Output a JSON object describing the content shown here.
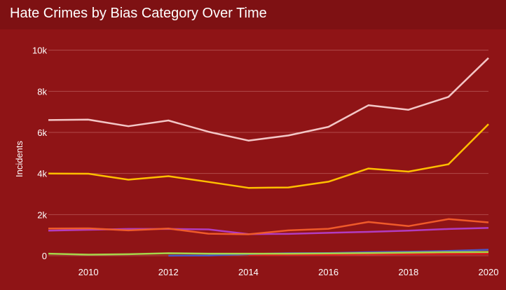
{
  "window": {
    "title": "Hate Crimes by Bias Category Over Time"
  },
  "chart_data": {
    "type": "line",
    "title": "Hate Crimes by Bias Category Over Time",
    "xlabel": "",
    "ylabel": "Incidents",
    "xlim": [
      2009,
      2020
    ],
    "ylim": [
      0,
      10500
    ],
    "x_ticks": [
      2010,
      2012,
      2014,
      2016,
      2018,
      2020
    ],
    "y_ticks": [
      0,
      2000,
      4000,
      6000,
      8000,
      10000
    ],
    "y_tick_labels": [
      "0",
      "2k",
      "4k",
      "6k",
      "8k",
      "10k"
    ],
    "grid": true,
    "legend": "none",
    "series": [
      {
        "color": "#f3c6c6",
        "x": [
          2009,
          2010,
          2011,
          2012,
          2013,
          2014,
          2015,
          2016,
          2017,
          2018,
          2019,
          2020
        ],
        "values": [
          6600,
          6620,
          6300,
          6580,
          6030,
          5600,
          5850,
          6270,
          7320,
          7100,
          7730,
          9620
        ]
      },
      {
        "color": "#ffbf00",
        "x": [
          2009,
          2010,
          2011,
          2012,
          2013,
          2014,
          2015,
          2016,
          2017,
          2018,
          2019,
          2020
        ],
        "values": [
          4000,
          3990,
          3700,
          3870,
          3590,
          3300,
          3320,
          3600,
          4240,
          4090,
          4450,
          6400
        ]
      },
      {
        "color": "#ef5a2a",
        "x": [
          2009,
          2010,
          2011,
          2012,
          2013,
          2014,
          2015,
          2016,
          2017,
          2018,
          2019,
          2020
        ],
        "values": [
          1320,
          1330,
          1230,
          1320,
          1070,
          1040,
          1230,
          1310,
          1640,
          1440,
          1780,
          1620
        ]
      },
      {
        "color": "#b23cc0",
        "x": [
          2009,
          2010,
          2011,
          2012,
          2013,
          2014,
          2015,
          2016,
          2017,
          2018,
          2019,
          2020
        ],
        "values": [
          1220,
          1260,
          1300,
          1300,
          1280,
          1050,
          1060,
          1110,
          1160,
          1220,
          1300,
          1350
        ]
      },
      {
        "color": "#a6d64a",
        "x": [
          2009,
          2010,
          2011,
          2012,
          2013,
          2014,
          2015,
          2016,
          2017,
          2018,
          2019,
          2020
        ],
        "values": [
          100,
          50,
          70,
          120,
          100,
          100,
          100,
          110,
          130,
          150,
          170,
          180
        ]
      },
      {
        "color": "#4a58c8",
        "x": [
          2012,
          2013,
          2014,
          2015,
          2016,
          2017,
          2018,
          2019,
          2020
        ],
        "values": [
          0,
          10,
          80,
          120,
          130,
          170,
          190,
          230,
          290
        ]
      },
      {
        "color": "#e01e1e",
        "x": [
          2014,
          2015,
          2016,
          2017,
          2018,
          2019,
          2020
        ],
        "values": [
          30,
          40,
          40,
          60,
          80,
          90,
          100
        ]
      }
    ]
  }
}
